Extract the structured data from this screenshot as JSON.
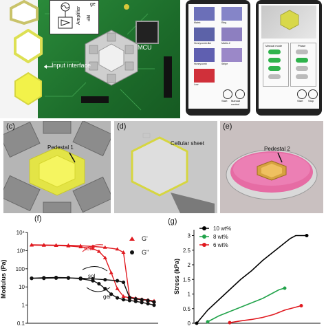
{
  "panel_a": {
    "block_rf": "RF",
    "block_amplifier": "Amplifier",
    "block_gen": "ge",
    "mcu_label": "MCU",
    "input_interface": "Input interface"
  },
  "panel_b": {
    "phone1_tiles": [
      "Matrix",
      "Ring",
      "Honeycomb-like",
      "Matrix-2",
      "Honeycomb",
      "Stripe",
      "Low"
    ],
    "phone1_buttons": [
      "Start",
      "Manual control"
    ],
    "phone2_col1_title": "Manual mode",
    "phone2_col2_title": "Phase",
    "phone2_buttons": [
      "Start",
      "Stop"
    ]
  },
  "panel_c": {
    "letter": "(c)",
    "annotation": "Pedestal 1"
  },
  "panel_d": {
    "letter": "(d)",
    "annotation": "Cellular sheet"
  },
  "panel_e": {
    "letter": "(e)",
    "annotation": "Pedestal 2"
  },
  "panel_f": {
    "letter": "(f)",
    "ylabel": "Modulus (Pa)",
    "yticks": [
      "10⁴",
      "10³",
      "100",
      "10",
      "1",
      "0.1"
    ],
    "legend": [
      "G'",
      "G''"
    ],
    "annotations": [
      "sol",
      "sol",
      "gel"
    ],
    "colors": {
      "storage": "#e0191f",
      "loss": "#111111"
    }
  },
  "panel_g": {
    "letter": "(g)",
    "ylabel": "Stress (kPa)",
    "yticks": [
      "3",
      "2.5",
      "2",
      "1.5",
      "1",
      "0.5",
      "0"
    ],
    "legend": [
      "10 wt%",
      "8 wt%",
      "6 wt%"
    ],
    "colors": [
      "#000000",
      "#21a34a",
      "#e0191f"
    ]
  },
  "chart_data": [
    {
      "type": "line",
      "ylabel": "Modulus (Pa)",
      "yscale": "log",
      "ylim": [
        0.1,
        10000
      ],
      "series": [
        {
          "name": "G'",
          "branch": "a",
          "x": [
            0,
            0.1,
            0.2,
            0.3,
            0.4,
            0.5,
            0.55,
            0.6,
            0.65,
            0.7,
            0.75,
            0.8,
            0.85,
            0.9,
            0.95,
            1.0
          ],
          "y": [
            2000,
            1950,
            1900,
            1800,
            1600,
            1300,
            900,
            400,
            60,
            8,
            3,
            2.5,
            2.2,
            2,
            1.8,
            1.6
          ]
        },
        {
          "name": "G'",
          "branch": "b",
          "x": [
            0,
            0.1,
            0.2,
            0.3,
            0.4,
            0.5,
            0.6,
            0.7,
            0.75,
            0.8,
            0.85,
            0.9,
            0.95,
            1.0
          ],
          "y": [
            2100,
            2050,
            2000,
            1950,
            1850,
            1700,
            1500,
            1200,
            800,
            2.8,
            2.4,
            2.1,
            1.9,
            1.7
          ]
        },
        {
          "name": "G''",
          "branch": "a",
          "x": [
            0,
            0.1,
            0.2,
            0.3,
            0.4,
            0.5,
            0.55,
            0.6,
            0.65,
            0.7,
            0.75,
            0.8,
            0.85,
            0.9,
            0.95,
            1.0
          ],
          "y": [
            30,
            32,
            33,
            32,
            28,
            22,
            15,
            8,
            4,
            2.5,
            2,
            1.8,
            1.6,
            1.4,
            1.2,
            1.0
          ]
        },
        {
          "name": "G''",
          "branch": "b",
          "x": [
            0,
            0.1,
            0.2,
            0.3,
            0.4,
            0.5,
            0.6,
            0.7,
            0.75,
            0.8,
            0.85,
            0.9,
            0.95,
            1.0
          ],
          "y": [
            30,
            30,
            31,
            31,
            30,
            28,
            25,
            22,
            18,
            2.6,
            2.2,
            2.0,
            1.8,
            1.5
          ]
        }
      ]
    },
    {
      "type": "line",
      "ylabel": "Stress (kPa)",
      "ylim": [
        0,
        3.2
      ],
      "series": [
        {
          "name": "10 wt%",
          "x": [
            0,
            0.1,
            0.2,
            0.3,
            0.4,
            0.5,
            0.6,
            0.7,
            0.8,
            0.85,
            0.9,
            0.95,
            1.0
          ],
          "y": [
            0,
            0.45,
            0.8,
            1.15,
            1.5,
            1.8,
            2.15,
            2.45,
            2.75,
            2.9,
            3.0,
            3.0,
            3.0
          ]
        },
        {
          "name": "8 wt%",
          "x": [
            0.1,
            0.2,
            0.3,
            0.4,
            0.5,
            0.6,
            0.7,
            0.75,
            0.8
          ],
          "y": [
            0.05,
            0.25,
            0.4,
            0.55,
            0.7,
            0.85,
            1.05,
            1.15,
            1.2
          ]
        },
        {
          "name": "6 wt%",
          "x": [
            0.3,
            0.4,
            0.5,
            0.6,
            0.7,
            0.8,
            0.9,
            0.95
          ],
          "y": [
            0.02,
            0.08,
            0.13,
            0.2,
            0.3,
            0.45,
            0.55,
            0.6
          ]
        }
      ]
    }
  ]
}
